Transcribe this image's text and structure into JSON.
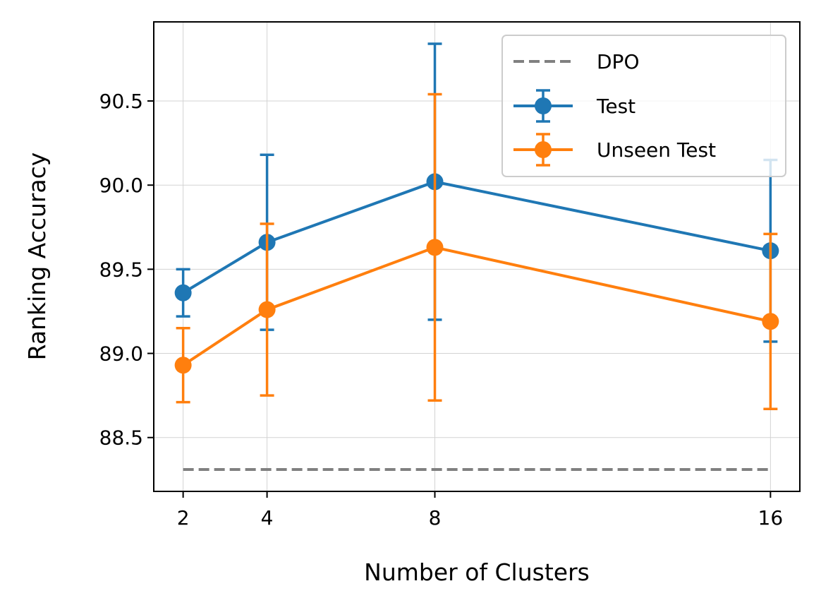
{
  "chart_data": {
    "type": "line",
    "xlabel": "Number of Clusters",
    "ylabel": "Ranking Accuracy",
    "x": [
      2,
      4,
      8,
      16
    ],
    "xticks": [
      "2",
      "4",
      "8",
      "16"
    ],
    "yticks": [
      "88.5",
      "89.0",
      "89.5",
      "90.0",
      "90.5"
    ],
    "xlim": [
      1.3,
      16.7
    ],
    "ylim": [
      88.18,
      90.97
    ],
    "grid": true,
    "legend_position": "top-right",
    "series": [
      {
        "name": "Test",
        "color": "#1f77b4",
        "values": [
          89.36,
          89.66,
          90.02,
          89.61
        ],
        "err_low": [
          89.22,
          89.14,
          89.2,
          89.07
        ],
        "err_high": [
          89.5,
          90.18,
          90.84,
          90.15
        ]
      },
      {
        "name": "Unseen Test",
        "color": "#ff7f0e",
        "values": [
          88.93,
          89.26,
          89.63,
          89.19
        ],
        "err_low": [
          88.71,
          88.75,
          88.72,
          88.67
        ],
        "err_high": [
          89.15,
          89.77,
          90.54,
          89.71
        ]
      }
    ],
    "reference_line": {
      "name": "DPO",
      "value": 88.31,
      "color": "#808080",
      "style": "dashed"
    }
  }
}
